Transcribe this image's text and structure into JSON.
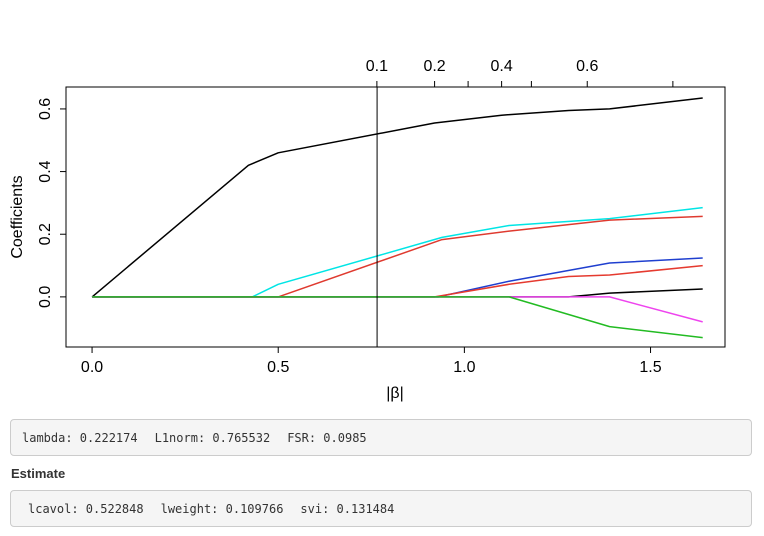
{
  "chart_data": {
    "type": "line",
    "xlabel": "|β|",
    "ylabel": "Coefficients",
    "xlim": [
      -0.07,
      1.7
    ],
    "ylim": [
      -0.16,
      0.67
    ],
    "x_ticks": [
      "0.0",
      "0.5",
      "1.0",
      "1.5"
    ],
    "y_ticks": [
      "0.0",
      "0.2",
      "0.4",
      "0.6"
    ],
    "top_axis_ticks": [
      {
        "x": 0.765,
        "label": "0.1"
      },
      {
        "x": 0.92,
        "label": "0.2"
      },
      {
        "x": 1.01,
        "label": ""
      },
      {
        "x": 1.1,
        "label": "0.4"
      },
      {
        "x": 1.18,
        "label": ""
      },
      {
        "x": 1.33,
        "label": "0.6"
      },
      {
        "x": 1.56,
        "label": ""
      }
    ],
    "vline_x": 0.765532,
    "grid": false,
    "series": [
      {
        "color": "#000000",
        "points": [
          [
            0,
            0
          ],
          [
            0.42,
            0.42
          ],
          [
            0.5,
            0.46
          ],
          [
            0.92,
            0.555
          ],
          [
            1.1,
            0.58
          ],
          [
            1.28,
            0.595
          ],
          [
            1.39,
            0.6
          ],
          [
            1.64,
            0.635
          ]
        ]
      },
      {
        "color": "#00e5e5",
        "points": [
          [
            0,
            0
          ],
          [
            0.43,
            0
          ],
          [
            0.5,
            0.04
          ],
          [
            0.94,
            0.19
          ],
          [
            1.12,
            0.228
          ],
          [
            1.39,
            0.25
          ],
          [
            1.64,
            0.285
          ]
        ]
      },
      {
        "color": "#df3a2f",
        "points": [
          [
            0,
            0
          ],
          [
            0.5,
            0
          ],
          [
            0.94,
            0.183
          ],
          [
            1.12,
            0.21
          ],
          [
            1.39,
            0.245
          ],
          [
            1.64,
            0.257
          ]
        ]
      },
      {
        "color": "#1f3fcf",
        "points": [
          [
            0,
            0
          ],
          [
            0.93,
            0
          ],
          [
            1.12,
            0.05
          ],
          [
            1.39,
            0.108
          ],
          [
            1.64,
            0.124
          ]
        ]
      },
      {
        "color": "#e53a2f",
        "points": [
          [
            0,
            0
          ],
          [
            0.92,
            0
          ],
          [
            1.12,
            0.04
          ],
          [
            1.28,
            0.065
          ],
          [
            1.39,
            0.07
          ],
          [
            1.64,
            0.1
          ]
        ]
      },
      {
        "color": "#000000",
        "points": [
          [
            0,
            0
          ],
          [
            1.28,
            0
          ],
          [
            1.39,
            0.012
          ],
          [
            1.64,
            0.025
          ]
        ]
      },
      {
        "color": "#ee44ee",
        "points": [
          [
            0,
            0
          ],
          [
            1.39,
            0
          ],
          [
            1.64,
            -0.08
          ]
        ]
      },
      {
        "color": "#22bb22",
        "points": [
          [
            0,
            0
          ],
          [
            1.12,
            0
          ],
          [
            1.39,
            -0.095
          ],
          [
            1.64,
            -0.13
          ]
        ]
      }
    ]
  },
  "info": {
    "lambda": "lambda: 0.222174",
    "l1norm": "L1norm: 0.765532",
    "fsr": "FSR: 0.0985"
  },
  "estimate": {
    "heading": "Estimate",
    "lcavol": "lcavol: 0.522848",
    "lweight": "lweight: 0.109766",
    "svi": "svi: 0.131484"
  }
}
